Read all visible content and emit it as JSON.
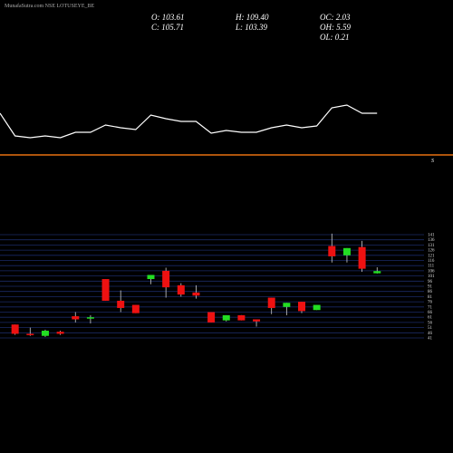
{
  "chart_data": {
    "type": "candlestick",
    "title": "MunafaSutra.com NSE LOTUSEYE_BE",
    "info": [
      {
        "label": "O: 103.61"
      },
      {
        "label": "H: 109.40"
      },
      {
        "label": "OC: 2.03"
      },
      {
        "label": "C: 105.71"
      },
      {
        "label": "L: 103.39"
      },
      {
        "label": "OH: 5.59"
      },
      {
        "label": "OL: 0.21"
      }
    ],
    "marker": "S",
    "up_color": "#22dd22",
    "down_color": "#ee1111",
    "line_color": "#ffffff",
    "separator_color": "#e87010",
    "grid_color": "#1a2a66",
    "open": [
      54,
      45,
      43,
      47,
      62,
      60,
      98,
      77,
      73,
      98,
      106,
      92,
      85,
      66,
      58,
      63,
      59,
      80,
      71,
      76,
      68,
      130,
      121,
      129,
      103.61
    ],
    "close": [
      45,
      44,
      48,
      45,
      59,
      61,
      77,
      70,
      65,
      102,
      90,
      83,
      82,
      56,
      63,
      58,
      57,
      70,
      75,
      67,
      73,
      120,
      128,
      108,
      105.71
    ],
    "high": [
      54,
      51,
      49,
      48,
      66,
      63,
      98,
      87,
      73,
      102,
      109,
      94,
      92,
      66,
      63,
      63,
      59,
      80,
      75,
      76,
      73,
      142,
      128,
      135,
      109.4
    ],
    "low": [
      44,
      43,
      42,
      44,
      56,
      55,
      77,
      66,
      65,
      93,
      80,
      81,
      79,
      56,
      57,
      58,
      52,
      64,
      63,
      65,
      68,
      114,
      114,
      105,
      103.39
    ],
    "line_values": [
      75,
      50,
      48,
      50,
      48,
      54,
      54,
      62,
      59,
      57,
      73,
      69,
      66,
      66,
      53,
      56,
      54,
      54,
      59,
      62,
      59,
      61,
      81,
      84,
      75,
      75
    ],
    "line_ylim": [
      40,
      90
    ],
    "ylim": [
      41,
      141
    ],
    "yticks": [
      141,
      136,
      131,
      126,
      121,
      116,
      111,
      106,
      101,
      96,
      91,
      86,
      81,
      76,
      71,
      66,
      61,
      56,
      51,
      46,
      41
    ]
  }
}
